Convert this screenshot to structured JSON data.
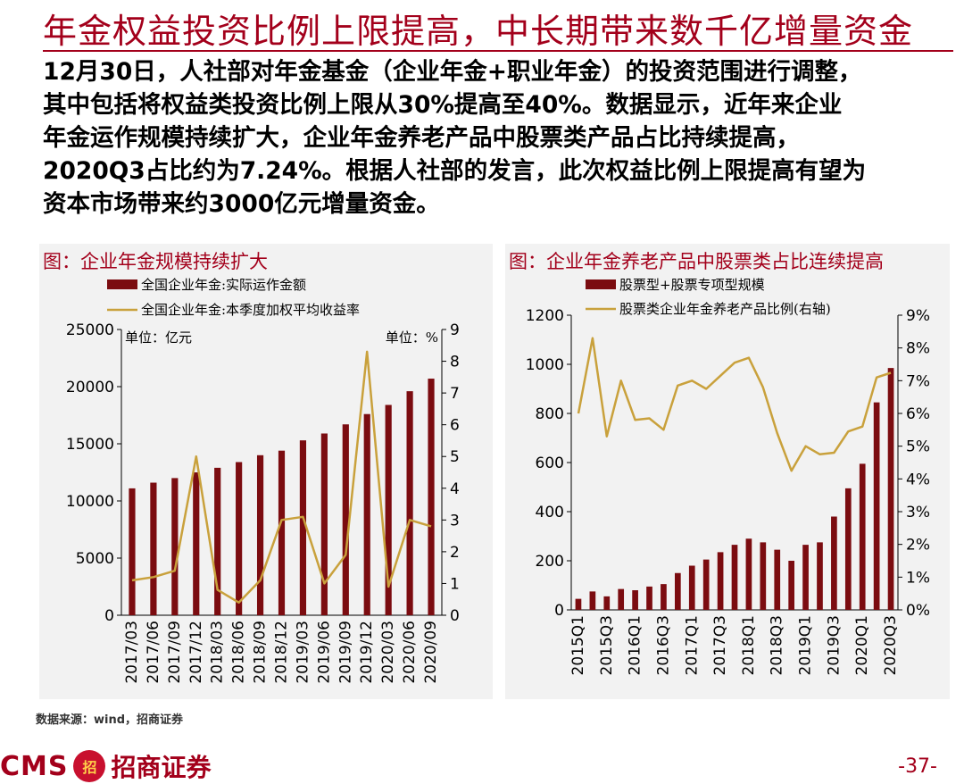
{
  "page": {
    "title": "年金权益投资比例上限提高，中长期带来数千亿增量资金",
    "paragraph_lines": [
      "12月30日，人社部对年金基金（企业年金+职业年金）的投资范围进行调整，",
      "其中包括将权益类投资比例上限从30%提高至40%。数据显示，近年来企业",
      "年金运作规模持续扩大，企业年金养老产品中股票类产品占比持续提高，",
      "2020Q3占比约为7.24%。根据人社部的发言，此次权益比例上限提高有望为",
      "资本市场带来约3000亿元增量资金。"
    ],
    "source": "数据来源：wind，招商证券",
    "page_number": "-37-",
    "logo_latin": "CMS",
    "logo_badge": "招",
    "logo_cn": "招商证券"
  },
  "colors": {
    "accent": "#a3001b",
    "bar": "#7b0c10",
    "line": "#c9a13c",
    "panel": "#f2f2f2"
  },
  "chart_data": [
    {
      "type": "bar",
      "panel_title": "图：企业年金规模持续扩大",
      "categories": [
        "2017/03",
        "2017/06",
        "2017/09",
        "2017/12",
        "2018/03",
        "2018/06",
        "2018/09",
        "2018/12",
        "2019/03",
        "2019/06",
        "2019/09",
        "2019/12",
        "2020/03",
        "2020/06",
        "2020/09"
      ],
      "series": [
        {
          "name": "全国企业年金:实际运作金额",
          "kind": "bar",
          "axis": "left",
          "values": [
            11100,
            11600,
            12000,
            12500,
            12900,
            13400,
            14000,
            14400,
            15300,
            15900,
            16700,
            17600,
            18400,
            19600,
            20700
          ]
        },
        {
          "name": "全国企业年金:本季度加权平均收益率",
          "kind": "line",
          "axis": "right",
          "values": [
            1.1,
            1.2,
            1.4,
            5.0,
            0.8,
            0.4,
            1.1,
            3.0,
            3.1,
            1.0,
            1.9,
            8.3,
            0.9,
            3.0,
            2.8
          ]
        }
      ],
      "left_axis": {
        "min": 0,
        "max": 25000,
        "ticks": [
          0,
          5000,
          10000,
          15000,
          20000,
          25000
        ],
        "unit_label": "单位：亿元"
      },
      "right_axis": {
        "min": 0,
        "max": 9,
        "ticks": [
          0,
          1,
          2,
          3,
          4,
          5,
          6,
          7,
          8,
          9
        ],
        "unit_label": "单位：%"
      },
      "legend_position": "top-left"
    },
    {
      "type": "bar",
      "panel_title": "图：企业年金养老产品中股票类占比连续提高",
      "categories": [
        "2015Q1",
        "2015Q2",
        "2015Q3",
        "2015Q4",
        "2016Q1",
        "2016Q2",
        "2016Q3",
        "2016Q4",
        "2017Q1",
        "2017Q2",
        "2017Q3",
        "2017Q4",
        "2018Q1",
        "2018Q2",
        "2018Q3",
        "2018Q4",
        "2019Q1",
        "2019Q2",
        "2019Q3",
        "2019Q4",
        "2020Q1",
        "2020Q2",
        "2020Q3"
      ],
      "x_tick_labels": [
        "2015Q1",
        "2015Q3",
        "2016Q1",
        "2016Q3",
        "2017Q1",
        "2017Q3",
        "2018Q1",
        "2018Q3",
        "2019Q1",
        "2019Q3",
        "2020Q1",
        "2020Q3"
      ],
      "series": [
        {
          "name": "股票型+股票专项型规模",
          "kind": "bar",
          "axis": "left",
          "values": [
            45,
            75,
            55,
            85,
            80,
            95,
            105,
            150,
            180,
            205,
            235,
            265,
            290,
            275,
            245,
            200,
            265,
            275,
            380,
            495,
            595,
            845,
            985
          ]
        },
        {
          "name": "股票类企业年金养老产品比例(右轴)",
          "kind": "line",
          "axis": "right",
          "values": [
            6.0,
            8.3,
            5.3,
            7.0,
            5.8,
            5.85,
            5.5,
            6.85,
            7.0,
            6.75,
            7.15,
            7.55,
            7.7,
            6.8,
            5.4,
            4.25,
            5.0,
            4.75,
            4.8,
            5.45,
            5.6,
            7.1,
            7.24
          ]
        }
      ],
      "left_axis": {
        "min": 0,
        "max": 1200,
        "ticks": [
          0,
          200,
          400,
          600,
          800,
          1000,
          1200
        ]
      },
      "right_axis": {
        "min": 0,
        "max": 9,
        "ticks": [
          "0%",
          "1%",
          "2%",
          "3%",
          "4%",
          "5%",
          "6%",
          "7%",
          "8%",
          "9%"
        ]
      },
      "legend_position": "top-center"
    }
  ]
}
